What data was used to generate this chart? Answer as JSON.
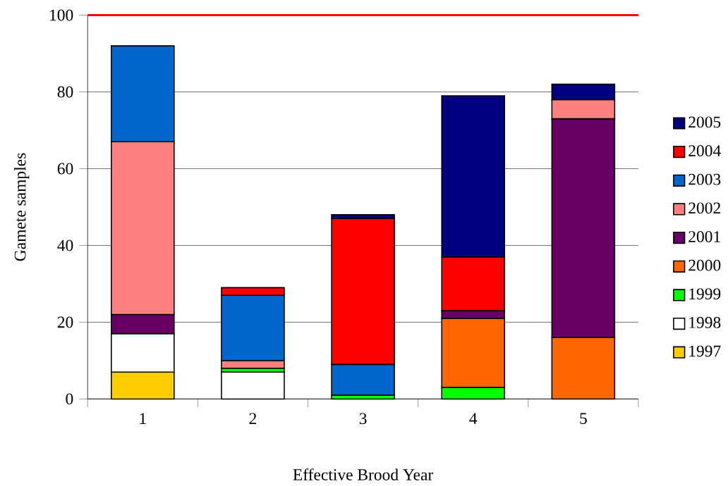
{
  "chart_data": {
    "type": "bar",
    "stacked": true,
    "xlabel": "Effective Brood Year",
    "ylabel": "Gamete samples",
    "categories": [
      "1",
      "2",
      "3",
      "4",
      "5"
    ],
    "series": [
      {
        "name": "1997",
        "color": "#ffcc00",
        "values": [
          7,
          null,
          null,
          null,
          null
        ]
      },
      {
        "name": "1998",
        "color": "#ffffff",
        "values": [
          10,
          7,
          null,
          null,
          null
        ]
      },
      {
        "name": "1999",
        "color": "#00ff00",
        "values": [
          null,
          1,
          1,
          3,
          null
        ]
      },
      {
        "name": "2000",
        "color": "#ff6600",
        "values": [
          null,
          null,
          null,
          18,
          16
        ]
      },
      {
        "name": "2001",
        "color": "#660066",
        "values": [
          5,
          null,
          null,
          2,
          57
        ]
      },
      {
        "name": "2002",
        "color": "#ff8080",
        "values": [
          45,
          2,
          null,
          null,
          5
        ]
      },
      {
        "name": "2003",
        "color": "#0066cc",
        "values": [
          25,
          17,
          8,
          null,
          null
        ]
      },
      {
        "name": "2004",
        "color": "#ff0000",
        "values": [
          null,
          2,
          38,
          14,
          null
        ]
      },
      {
        "name": "2005",
        "color": "#000080",
        "values": [
          null,
          null,
          1,
          42,
          4
        ]
      }
    ],
    "ylim": [
      0,
      100
    ],
    "yticks": [
      0,
      20,
      40,
      60,
      80,
      100
    ],
    "grid": "y",
    "legend": "right",
    "ref_lines": [
      {
        "axis": "y",
        "value": 100,
        "color": "#ff0000"
      }
    ]
  }
}
